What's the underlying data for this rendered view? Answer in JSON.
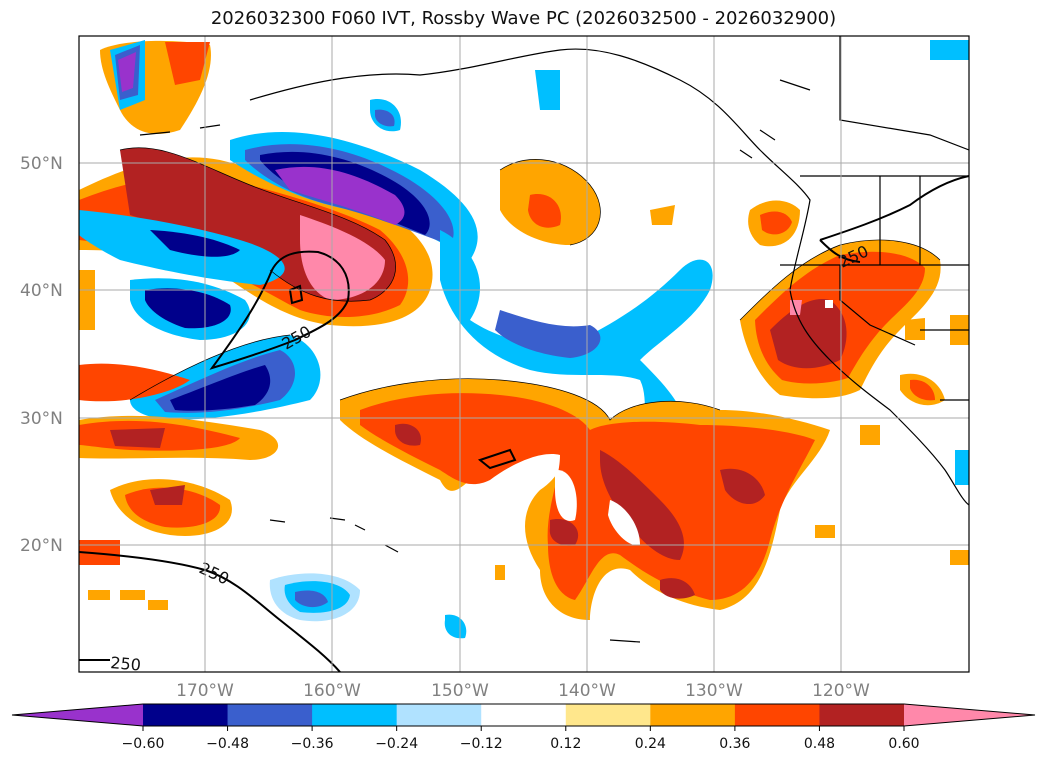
{
  "title": "2026032300 F060 IVT, Rossby Wave PC (2026032500 - 2026032900)",
  "lat_ticks": [
    "50°N",
    "40°N",
    "30°N",
    "20°N"
  ],
  "lon_ticks": [
    "170°W",
    "160°W",
    "150°W",
    "140°W",
    "130°W",
    "120°W"
  ],
  "colorbar": {
    "ticks": [
      "−0.60",
      "−0.48",
      "−0.36",
      "−0.24",
      "−0.12",
      "0.12",
      "0.24",
      "0.36",
      "0.48",
      "0.60"
    ],
    "colors": [
      "#9932cc",
      "#00008b",
      "#3a5fcd",
      "#00bfff",
      "#b0e2ff",
      "#ffffff",
      "#ffe78c",
      "#ffa500",
      "#ff4500",
      "#b22222",
      "#ff88aa"
    ]
  },
  "contour_label": "250"
}
